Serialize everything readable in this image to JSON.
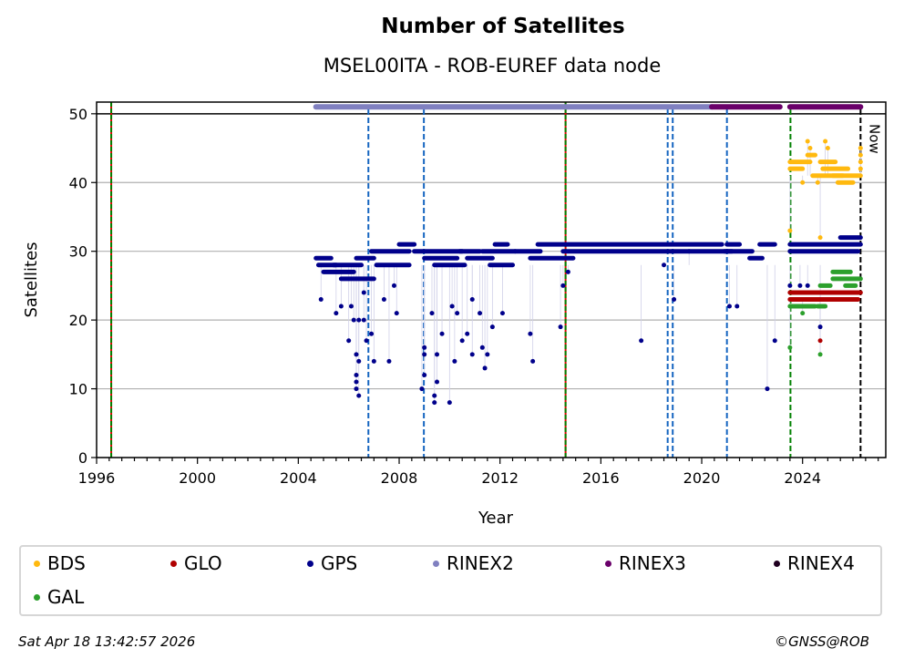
{
  "chart_data": {
    "type": "scatter",
    "title": "Number of Satellites",
    "subtitle": "MSEL00ITA - ROB-EUREF data node",
    "xlabel": "Year",
    "ylabel": "Satellites",
    "xlim": [
      1996.0,
      2027.3
    ],
    "ylim": [
      0,
      51.7
    ],
    "x_ticks": [
      1996,
      2000,
      2004,
      2008,
      2012,
      2016,
      2020,
      2024
    ],
    "y_ticks": [
      0,
      10,
      20,
      30,
      40,
      50
    ],
    "grid": "horizontal",
    "legend_position": "bottom",
    "now_label": "Now",
    "vertical_lines": [
      {
        "x": 1996.58,
        "style": "red-green-dashed"
      },
      {
        "x": 2006.78,
        "style": "blue-dashed"
      },
      {
        "x": 2008.98,
        "style": "blue-dashed"
      },
      {
        "x": 2014.6,
        "style": "red-green-dashed"
      },
      {
        "x": 2018.65,
        "style": "blue-dashed"
      },
      {
        "x": 2018.85,
        "style": "blue-dashed"
      },
      {
        "x": 2021.0,
        "style": "blue-dashed"
      },
      {
        "x": 2023.52,
        "style": "green-dashed"
      },
      {
        "x": 2026.3,
        "style": "black-dashed-now"
      }
    ],
    "rinex_bars": [
      {
        "name": "RINEX2",
        "color": "#8080c0",
        "start": 2004.7,
        "end": 2020.4,
        "y": 51
      },
      {
        "name": "RINEX3",
        "color": "#6a006a",
        "start": 2020.4,
        "end": 2023.1,
        "y": 51
      },
      {
        "name": "RINEX3",
        "color": "#6a006a",
        "start": 2023.5,
        "end": 2026.3,
        "y": 51
      }
    ],
    "series": [
      {
        "name": "GPS",
        "color": "#00008b",
        "segments": [
          {
            "start": 2004.7,
            "end": 2005.3,
            "y": 29
          },
          {
            "start": 2004.8,
            "end": 2005.5,
            "y": 28
          },
          {
            "start": 2005.0,
            "end": 2006.2,
            "y": 27
          },
          {
            "start": 2005.4,
            "end": 2006.5,
            "y": 28
          },
          {
            "start": 2005.7,
            "end": 2007.0,
            "y": 26
          },
          {
            "start": 2006.3,
            "end": 2007.0,
            "y": 29
          },
          {
            "start": 2006.9,
            "end": 2008.4,
            "y": 30
          },
          {
            "start": 2007.1,
            "end": 2008.4,
            "y": 28
          },
          {
            "start": 2008.0,
            "end": 2008.6,
            "y": 31
          },
          {
            "start": 2008.6,
            "end": 2010.5,
            "y": 30
          },
          {
            "start": 2009.0,
            "end": 2010.3,
            "y": 29
          },
          {
            "start": 2009.4,
            "end": 2010.6,
            "y": 28
          },
          {
            "start": 2010.4,
            "end": 2011.2,
            "y": 30
          },
          {
            "start": 2010.7,
            "end": 2011.7,
            "y": 29
          },
          {
            "start": 2011.3,
            "end": 2012.6,
            "y": 30
          },
          {
            "start": 2011.8,
            "end": 2012.3,
            "y": 31
          },
          {
            "start": 2011.6,
            "end": 2012.5,
            "y": 28
          },
          {
            "start": 2012.6,
            "end": 2013.6,
            "y": 30
          },
          {
            "start": 2013.5,
            "end": 2014.6,
            "y": 31
          },
          {
            "start": 2013.2,
            "end": 2014.9,
            "y": 29
          },
          {
            "start": 2014.6,
            "end": 2020.8,
            "y": 31
          },
          {
            "start": 2014.5,
            "end": 2021.2,
            "y": 30
          },
          {
            "start": 2020.9,
            "end": 2022.0,
            "y": 30
          },
          {
            "start": 2021.0,
            "end": 2021.5,
            "y": 31
          },
          {
            "start": 2021.9,
            "end": 2022.4,
            "y": 29
          },
          {
            "start": 2022.3,
            "end": 2022.9,
            "y": 31
          },
          {
            "start": 2023.5,
            "end": 2026.3,
            "y": 31
          },
          {
            "start": 2023.5,
            "end": 2026.2,
            "y": 30
          },
          {
            "start": 2025.5,
            "end": 2026.3,
            "y": 32
          }
        ],
        "points": [
          [
            2004.9,
            23
          ],
          [
            2005.5,
            21
          ],
          [
            2005.7,
            22
          ],
          [
            2006.0,
            17
          ],
          [
            2006.1,
            22
          ],
          [
            2006.2,
            20
          ],
          [
            2006.3,
            15
          ],
          [
            2006.3,
            12
          ],
          [
            2006.3,
            11
          ],
          [
            2006.3,
            10
          ],
          [
            2006.4,
            9
          ],
          [
            2006.4,
            14
          ],
          [
            2006.4,
            20
          ],
          [
            2006.6,
            20
          ],
          [
            2006.6,
            24
          ],
          [
            2006.7,
            17
          ],
          [
            2006.9,
            18
          ],
          [
            2007.0,
            14
          ],
          [
            2007.4,
            23
          ],
          [
            2007.6,
            14
          ],
          [
            2007.8,
            25
          ],
          [
            2007.9,
            21
          ],
          [
            2008.9,
            10
          ],
          [
            2009.0,
            16
          ],
          [
            2009.0,
            15
          ],
          [
            2009.0,
            12
          ],
          [
            2009.3,
            21
          ],
          [
            2009.4,
            9
          ],
          [
            2009.4,
            8
          ],
          [
            2009.5,
            11
          ],
          [
            2009.5,
            15
          ],
          [
            2009.7,
            18
          ],
          [
            2010.0,
            8
          ],
          [
            2010.1,
            22
          ],
          [
            2010.2,
            14
          ],
          [
            2010.3,
            21
          ],
          [
            2010.5,
            17
          ],
          [
            2010.7,
            18
          ],
          [
            2010.9,
            15
          ],
          [
            2010.9,
            23
          ],
          [
            2011.2,
            21
          ],
          [
            2011.3,
            16
          ],
          [
            2011.4,
            13
          ],
          [
            2011.5,
            15
          ],
          [
            2011.7,
            19
          ],
          [
            2012.1,
            21
          ],
          [
            2013.2,
            18
          ],
          [
            2013.3,
            14
          ],
          [
            2014.4,
            19
          ],
          [
            2014.5,
            25
          ],
          [
            2014.7,
            27
          ],
          [
            2017.6,
            17
          ],
          [
            2018.5,
            28
          ],
          [
            2018.9,
            23
          ],
          [
            2019.5,
            30
          ],
          [
            2021.1,
            22
          ],
          [
            2021.4,
            22
          ],
          [
            2022.6,
            10
          ],
          [
            2022.9,
            17
          ],
          [
            2023.5,
            25
          ],
          [
            2023.9,
            25
          ],
          [
            2024.2,
            25
          ],
          [
            2024.7,
            19
          ]
        ]
      },
      {
        "name": "BDS",
        "color": "#ffb90f",
        "segments": [
          {
            "start": 2023.5,
            "end": 2024.3,
            "y": 43
          },
          {
            "start": 2023.5,
            "end": 2024.0,
            "y": 42
          },
          {
            "start": 2024.4,
            "end": 2025.6,
            "y": 41
          },
          {
            "start": 2024.8,
            "end": 2025.8,
            "y": 42
          },
          {
            "start": 2024.7,
            "end": 2025.3,
            "y": 43
          },
          {
            "start": 2025.2,
            "end": 2026.3,
            "y": 41
          },
          {
            "start": 2025.4,
            "end": 2026.0,
            "y": 40
          },
          {
            "start": 2024.2,
            "end": 2024.5,
            "y": 44
          }
        ],
        "points": [
          [
            2023.5,
            33
          ],
          [
            2024.2,
            46
          ],
          [
            2024.3,
            45
          ],
          [
            2024.9,
            46
          ],
          [
            2025.0,
            45
          ],
          [
            2024.7,
            32
          ],
          [
            2026.3,
            45
          ],
          [
            2026.3,
            44
          ],
          [
            2026.3,
            43
          ],
          [
            2026.3,
            42
          ],
          [
            2024.0,
            40
          ],
          [
            2024.6,
            40
          ]
        ]
      },
      {
        "name": "GLO",
        "color": "#b00000",
        "segments": [
          {
            "start": 2023.5,
            "end": 2026.3,
            "y": 24
          },
          {
            "start": 2023.5,
            "end": 2026.2,
            "y": 23
          }
        ],
        "points": [
          [
            2024.7,
            17
          ]
        ]
      },
      {
        "name": "GAL",
        "color": "#2ca02c",
        "segments": [
          {
            "start": 2025.2,
            "end": 2025.9,
            "y": 27
          },
          {
            "start": 2025.2,
            "end": 2026.3,
            "y": 26
          },
          {
            "start": 2024.7,
            "end": 2025.1,
            "y": 25
          },
          {
            "start": 2025.7,
            "end": 2026.1,
            "y": 25
          },
          {
            "start": 2023.5,
            "end": 2024.5,
            "y": 22
          },
          {
            "start": 2024.6,
            "end": 2024.9,
            "y": 22
          }
        ],
        "points": [
          [
            2023.5,
            16
          ],
          [
            2024.0,
            21
          ],
          [
            2024.7,
            15
          ]
        ]
      }
    ],
    "legend": [
      {
        "label": "BDS",
        "color": "#ffb90f"
      },
      {
        "label": "GLO",
        "color": "#b00000"
      },
      {
        "label": "GPS",
        "color": "#00008b"
      },
      {
        "label": "RINEX2",
        "color": "#8080c0"
      },
      {
        "label": "RINEX3",
        "color": "#6a006a"
      },
      {
        "label": "RINEX4",
        "color": "#200020"
      },
      {
        "label": "GAL",
        "color": "#2ca02c"
      }
    ]
  },
  "footer": {
    "timestamp": "Sat Apr 18 13:42:57 2026",
    "credit": "©GNSS@ROB"
  }
}
